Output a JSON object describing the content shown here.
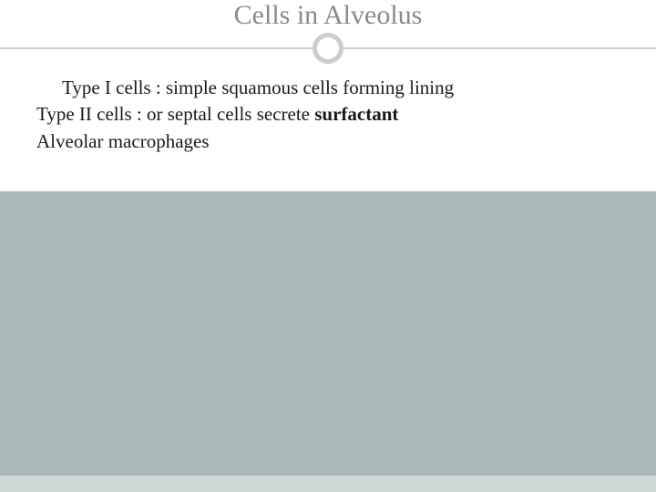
{
  "slide": {
    "title": "Cells in Alveolus",
    "title_color": "#8a8a8a",
    "title_fontsize": 30,
    "background_color": "#a9bab8",
    "content_background": "#ffffff",
    "divider_color": "#d0d0d0",
    "circle_border_color": "#cccccc",
    "footer_bar_color": "#cfd9d7",
    "body_fontsize": 21,
    "body_color": "#1a1a1a",
    "lines": {
      "line1": "Type I cells : simple squamous cells forming lining",
      "line2_prefix": "Type II cells : or septal cells secrete ",
      "line2_bold": "surfactant",
      "line3": "Alveolar macrophages"
    }
  }
}
